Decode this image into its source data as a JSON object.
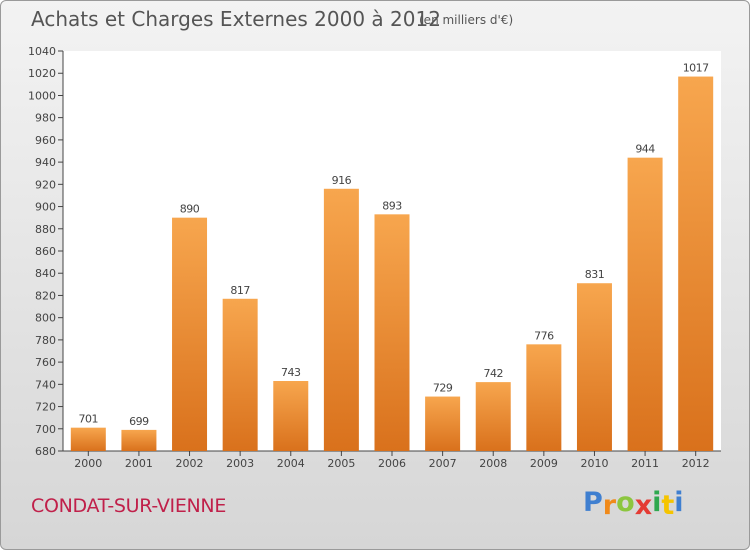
{
  "header": {
    "title": "Achats et Charges Externes 2000 à 2012",
    "subtitle": "(en milliers d'€)"
  },
  "footer": {
    "commune": "CONDAT-SUR-VIENNE",
    "logo_letters": [
      {
        "char": "P",
        "color": "#3f7fd0"
      },
      {
        "char": "r",
        "color": "#f08a1a"
      },
      {
        "char": "o",
        "color": "#8cc63f"
      },
      {
        "char": "x",
        "color": "#e43b34"
      },
      {
        "char": "i",
        "color": "#2fa84f"
      },
      {
        "char": "t",
        "color": "#f5c400"
      },
      {
        "char": "i",
        "color": "#3f7fd0"
      }
    ]
  },
  "chart_data": {
    "type": "bar",
    "title": "Achats et Charges Externes 2000 à 2012",
    "subtitle": "(en milliers d'€)",
    "categories": [
      "2000",
      "2001",
      "2002",
      "2003",
      "2004",
      "2005",
      "2006",
      "2007",
      "2008",
      "2009",
      "2010",
      "2011",
      "2012"
    ],
    "values": [
      701,
      699,
      890,
      817,
      743,
      916,
      893,
      729,
      742,
      776,
      831,
      944,
      1017
    ],
    "data_labels": [
      "701",
      "699",
      "890",
      "817",
      "743",
      "916",
      "893",
      "729",
      "742",
      "776",
      "831",
      "944",
      "1017"
    ],
    "ylim": [
      680,
      1040
    ],
    "yticks": [
      680,
      700,
      720,
      740,
      760,
      780,
      800,
      820,
      840,
      860,
      880,
      900,
      920,
      940,
      960,
      980,
      1000,
      1020,
      1040
    ],
    "xlabel": "",
    "ylabel": "",
    "grid": false,
    "colors": {
      "bar_light": "#f7a64e",
      "bar_dark": "#d9711c",
      "axis": "#444444",
      "text": "#444444",
      "background": "#ffffff"
    }
  }
}
